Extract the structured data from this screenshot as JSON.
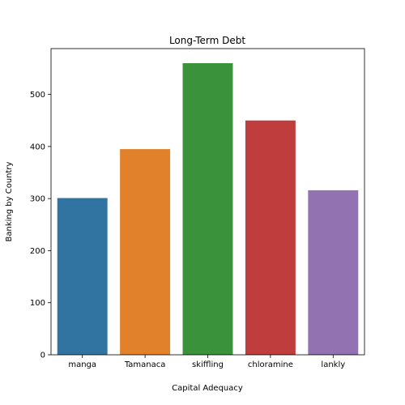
{
  "chart_data": {
    "type": "bar",
    "title": "Long-Term Debt",
    "xlabel": "Capital Adequacy",
    "ylabel": "Banking by Country",
    "categories": [
      "manga",
      "Tamanaca",
      "skiffling",
      "chloramine",
      "lankly"
    ],
    "values": [
      301,
      395,
      560,
      450,
      316
    ],
    "colors": [
      "#3274a1",
      "#e1812c",
      "#3a923a",
      "#c03d3e",
      "#9372b2"
    ],
    "ylim": [
      0,
      588
    ],
    "yticks": [
      0,
      100,
      200,
      300,
      400,
      500
    ],
    "grid": false
  }
}
